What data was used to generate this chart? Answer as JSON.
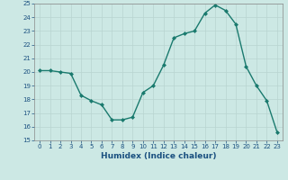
{
  "x": [
    0,
    1,
    2,
    3,
    4,
    5,
    6,
    7,
    8,
    9,
    10,
    11,
    12,
    13,
    14,
    15,
    16,
    17,
    18,
    19,
    20,
    21,
    22,
    23
  ],
  "y": [
    20.1,
    20.1,
    20.0,
    19.9,
    18.3,
    17.9,
    17.6,
    16.5,
    16.5,
    16.7,
    18.5,
    19.0,
    20.5,
    22.5,
    22.8,
    23.0,
    24.3,
    24.9,
    24.5,
    23.5,
    20.4,
    19.0,
    17.9,
    15.6
  ],
  "xlabel": "Humidex (Indice chaleur)",
  "ylim": [
    15,
    25
  ],
  "xlim": [
    -0.5,
    23.5
  ],
  "yticks": [
    15,
    16,
    17,
    18,
    19,
    20,
    21,
    22,
    23,
    24,
    25
  ],
  "xticks": [
    0,
    1,
    2,
    3,
    4,
    5,
    6,
    7,
    8,
    9,
    10,
    11,
    12,
    13,
    14,
    15,
    16,
    17,
    18,
    19,
    20,
    21,
    22,
    23
  ],
  "line_color": "#1a7a6e",
  "marker": "D",
  "marker_size": 2.0,
  "bg_color": "#cce8e4",
  "grid_color": "#b8d4d0",
  "xlabel_color": "#1a5080",
  "tick_color": "#1a5080",
  "tick_fontsize": 5.0,
  "xlabel_fontsize": 6.5
}
